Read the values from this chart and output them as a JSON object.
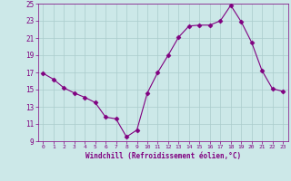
{
  "x": [
    0,
    1,
    2,
    3,
    4,
    5,
    6,
    7,
    8,
    9,
    10,
    11,
    12,
    13,
    14,
    15,
    16,
    17,
    18,
    19,
    20,
    21,
    22,
    23
  ],
  "y": [
    16.9,
    16.2,
    15.2,
    14.6,
    14.1,
    13.5,
    11.8,
    11.6,
    9.5,
    10.3,
    14.6,
    17.0,
    19.0,
    21.1,
    22.4,
    22.5,
    22.5,
    23.0,
    24.8,
    22.9,
    20.5,
    17.2,
    15.1,
    14.8
  ],
  "line_color": "#800080",
  "marker": "D",
  "marker_size": 2.5,
  "background_color": "#cce8e8",
  "grid_color": "#aacccc",
  "xlabel": "Windchill (Refroidissement éolien,°C)",
  "xlabel_color": "#800080",
  "tick_color": "#800080",
  "ylim": [
    9,
    25
  ],
  "xlim": [
    -0.5,
    23.5
  ],
  "yticks": [
    9,
    11,
    13,
    15,
    17,
    19,
    21,
    23,
    25
  ],
  "xticks": [
    0,
    1,
    2,
    3,
    4,
    5,
    6,
    7,
    8,
    9,
    10,
    11,
    12,
    13,
    14,
    15,
    16,
    17,
    18,
    19,
    20,
    21,
    22,
    23
  ]
}
